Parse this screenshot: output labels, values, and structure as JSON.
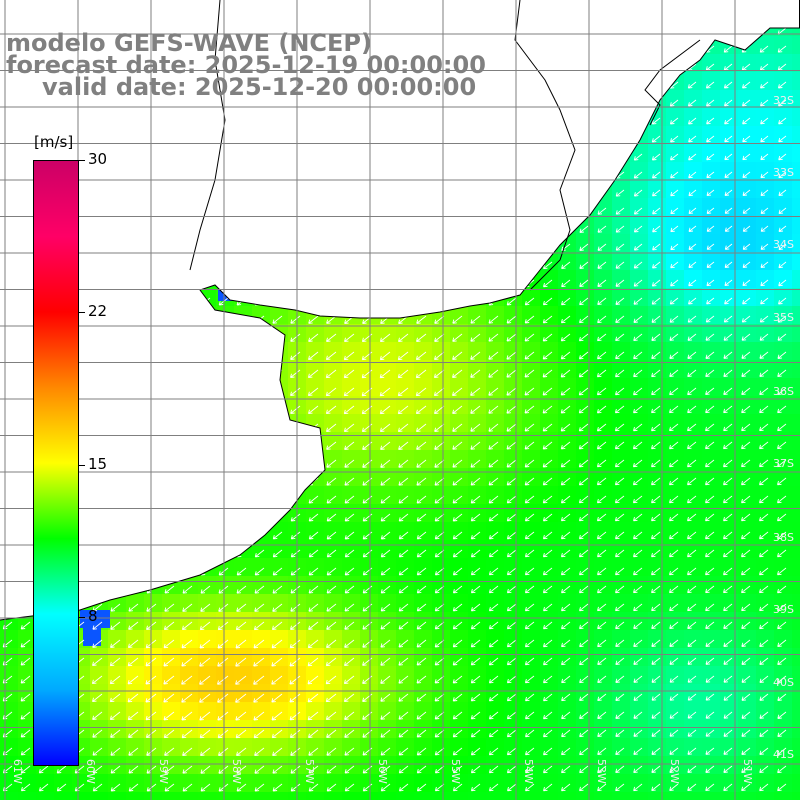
{
  "title": {
    "line1": "modelo GEFS-WAVE (NCEP)",
    "line2": "forecast date: 2025-12-19 00:00:00",
    "line3": "valid date: 2025-12-20 00:00:00"
  },
  "colorbar": {
    "unit": "[m/s]",
    "range": [
      0,
      30
    ],
    "ticks": [
      {
        "label": "30",
        "value": 30
      },
      {
        "label": "22",
        "value": 22
      },
      {
        "label": "15",
        "value": 15
      },
      {
        "label": "8",
        "value": 8
      }
    ],
    "stops": [
      "#0000ff",
      "#00aaff",
      "#00ffff",
      "#00ff00",
      "#ffff00",
      "#ff8800",
      "#ff0000",
      "#ff0066",
      "#cc0066"
    ]
  },
  "axes": {
    "lat_labels": [
      "32S",
      "33S",
      "34S",
      "35S",
      "36S",
      "37S",
      "38S",
      "39S",
      "40S",
      "41S"
    ],
    "lon_labels": [
      "61W",
      "60W",
      "59W",
      "58W",
      "57W",
      "56W",
      "55W",
      "54W",
      "53W",
      "52W",
      "51W"
    ],
    "lat_range": [
      31.0,
      41.5
    ],
    "lon_range": [
      62.0,
      51.5
    ]
  },
  "colors": {
    "land": "#ffffff",
    "coast": "#000000",
    "grid": "#7f7f7f",
    "arrow": "#ffffff"
  },
  "wind": {
    "direction": "from northeast",
    "field": "wind speed over ocean, approx. 6-18 m/s"
  }
}
